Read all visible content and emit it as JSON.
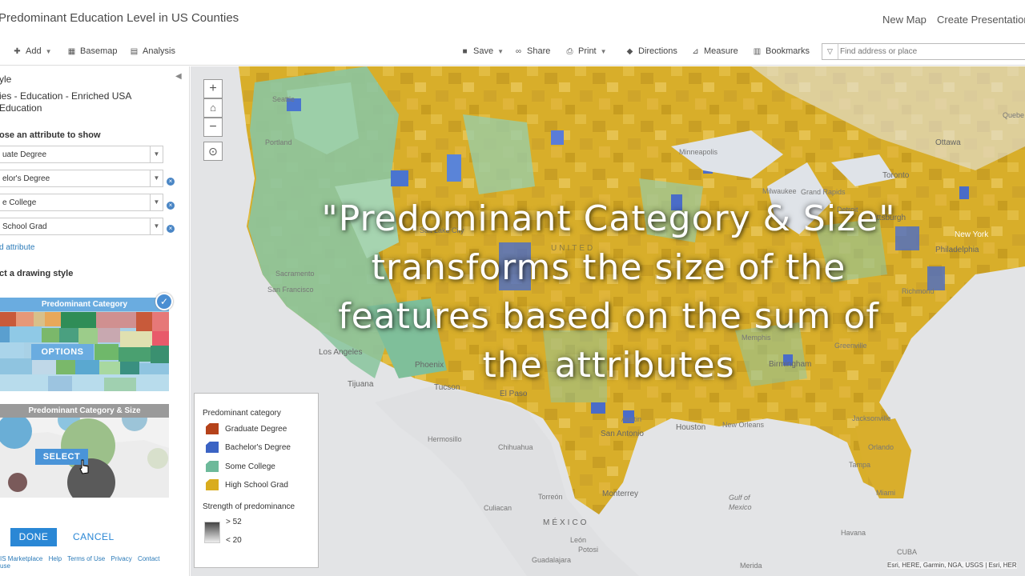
{
  "app": {
    "title": "Predominant Education Level in US Counties",
    "new_map": "New Map",
    "create_presentation": "Create Presentation"
  },
  "toolbar": {
    "add": "Add",
    "basemap": "Basemap",
    "analysis": "Analysis",
    "save": "Save",
    "share": "Share",
    "print": "Print",
    "directions": "Directions",
    "measure": "Measure",
    "bookmarks": "Bookmarks",
    "search_placeholder": "Find address or place"
  },
  "sidebar": {
    "heading": "yle",
    "layer_name_line1": "ies - Education - Enriched USA",
    "layer_name_line2": "Education",
    "choose_attribute": "ose an attribute to show",
    "attributes": [
      "uate Degree",
      "elor's Degree",
      "e College",
      "School Grad"
    ],
    "add_attribute": "d attribute",
    "drawing_style": "ct a drawing style",
    "card1": {
      "title": "Predominant Category",
      "button": "OPTIONS"
    },
    "card2": {
      "title": "Predominant Category & Size",
      "button": "SELECT"
    },
    "done": "DONE",
    "cancel": "CANCEL",
    "footer": [
      "IS Marketplace",
      "Help",
      "Terms of Use",
      "Privacy",
      "Contact",
      "use"
    ]
  },
  "overlay": {
    "line1": "\"Predominant Category & Size\"",
    "line2": "transforms the size of the",
    "line3": "features based on the sum of",
    "line4": "the attributes"
  },
  "legend": {
    "title": "Predominant category",
    "items": [
      {
        "label": "Graduate Degree",
        "color": "#b5421a"
      },
      {
        "label": "Bachelor's Degree",
        "color": "#3b63c4"
      },
      {
        "label": "Some College",
        "color": "#6db99a"
      },
      {
        "label": "High School Grad",
        "color": "#d9ac1e"
      }
    ],
    "strength_title": "Strength of predominance",
    "high": "> 52",
    "low": "< 20"
  },
  "map": {
    "places": {
      "seattle": "Seattle",
      "portland": "Portland",
      "sacramento": "Sacramento",
      "san_francisco": "San Francisco",
      "los_angeles": "Los Angeles",
      "tijuana": "Tijuana",
      "phoenix": "Phoenix",
      "tucson": "Tucson",
      "el_paso": "El Paso",
      "salt_lake": "Salt Lake City",
      "minneapolis": "Minneapolis",
      "milwaukee": "Milwaukee",
      "detroit": "Detroit",
      "grand_rapids": "Grand Rapids",
      "toronto": "Toronto",
      "ottawa": "Ottawa",
      "quebec": "Quebe",
      "pittsburgh": "Pittsburgh",
      "new_york": "New York",
      "philadelphia": "Philadelphia",
      "richmond": "Richmond",
      "memphis": "Memphis",
      "birmingham": "Birmingham",
      "greenville": "Greenville",
      "jacksonville": "Jacksonville",
      "orlando": "Orlando",
      "tampa": "Tampa",
      "miami": "Miami",
      "austin": "Austin",
      "san_antonio": "San Antonio",
      "houston": "Houston",
      "new_orleans": "New Orleans",
      "hermosillo": "Hermosillo",
      "chihuahua": "Chihuahua",
      "torreon": "Torreón",
      "monterrey": "Monterrey",
      "culiacan": "Culiacan",
      "mexico": "MÉXICO",
      "leon": "León",
      "potosi": "Potosi",
      "guadalajara": "Guadalajara",
      "merida": "Merida",
      "havana": "Havana",
      "cuba": "CUBA",
      "gulf1": "Gulf of",
      "gulf2": "Mexico",
      "united": "UNITED"
    },
    "attribution": "Esri, HERE, Garmin, NGA, USGS | Esri, HER"
  }
}
